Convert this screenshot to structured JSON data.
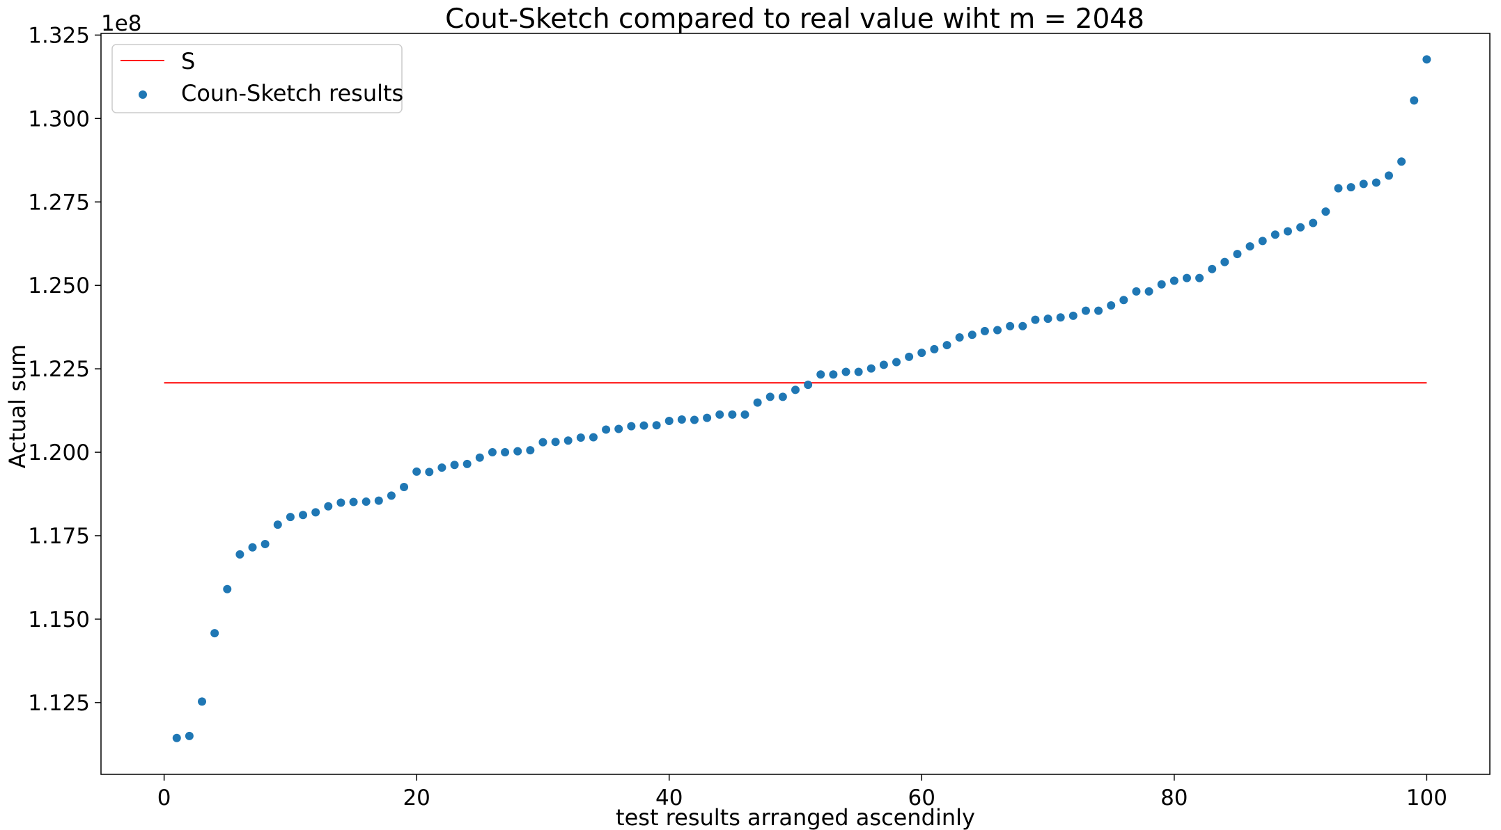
{
  "chart_data": {
    "type": "scatter",
    "title": "Cout-Sketch compared to real value wiht m = 2048",
    "xlabel": "test results arranged ascendinly",
    "ylabel": "Actual sum",
    "y_offset_label": "1e8",
    "xlim": [
      -5,
      105
    ],
    "ylim": [
      1.1035,
      1.3255
    ],
    "x_ticks": [
      0,
      20,
      40,
      60,
      80,
      100
    ],
    "x_tick_labels": [
      "0",
      "20",
      "40",
      "60",
      "80",
      "100"
    ],
    "y_ticks": [
      1.125,
      1.15,
      1.175,
      1.2,
      1.225,
      1.25,
      1.275,
      1.3,
      1.325
    ],
    "y_tick_labels": [
      "1.125",
      "1.150",
      "1.175",
      "1.200",
      "1.225",
      "1.250",
      "1.275",
      "1.300",
      "1.325"
    ],
    "grid": false,
    "legend_position": "top-left",
    "line_series": {
      "name": "S",
      "color": "#ff0000",
      "x": [
        0,
        100
      ],
      "y": [
        1.2208,
        1.2208
      ]
    },
    "scatter_series": {
      "name": "Coun-Sketch results",
      "color": "#1f77b4",
      "x": [
        1,
        2,
        3,
        4,
        5,
        6,
        7,
        8,
        9,
        10,
        11,
        12,
        13,
        14,
        15,
        16,
        17,
        18,
        19,
        20,
        21,
        22,
        23,
        24,
        25,
        26,
        27,
        28,
        29,
        30,
        31,
        32,
        33,
        34,
        35,
        36,
        37,
        38,
        39,
        40,
        41,
        42,
        43,
        44,
        45,
        46,
        47,
        48,
        49,
        50,
        51,
        52,
        53,
        54,
        55,
        56,
        57,
        58,
        59,
        60,
        61,
        62,
        63,
        64,
        65,
        66,
        67,
        68,
        69,
        70,
        71,
        72,
        73,
        74,
        75,
        76,
        77,
        78,
        79,
        80,
        81,
        82,
        83,
        84,
        85,
        86,
        87,
        88,
        89,
        90,
        91,
        92,
        93,
        94,
        95,
        96,
        97,
        98,
        99,
        100
      ],
      "y": [
        1.1144,
        1.115,
        1.1253,
        1.1458,
        1.159,
        1.1694,
        1.1715,
        1.1725,
        1.1783,
        1.1806,
        1.1812,
        1.182,
        1.1838,
        1.1849,
        1.1851,
        1.1852,
        1.1855,
        1.187,
        1.1896,
        1.1942,
        1.1941,
        1.1954,
        1.1962,
        1.1965,
        1.1984,
        1.2,
        1.2,
        1.2003,
        1.2006,
        1.203,
        1.2031,
        1.2035,
        1.2044,
        1.2045,
        1.2068,
        1.207,
        1.2078,
        1.208,
        1.2081,
        1.2094,
        1.2098,
        1.2097,
        1.2103,
        1.2113,
        1.2113,
        1.2113,
        1.2149,
        1.2166,
        1.2166,
        1.2187,
        1.2202,
        1.2233,
        1.2233,
        1.2241,
        1.2241,
        1.2251,
        1.2262,
        1.227,
        1.2286,
        1.2298,
        1.2309,
        1.2321,
        1.2344,
        1.2352,
        1.2363,
        1.2366,
        1.2378,
        1.2378,
        1.2397,
        1.24,
        1.2404,
        1.2409,
        1.2424,
        1.2424,
        1.244,
        1.2456,
        1.2482,
        1.2482,
        1.2503,
        1.2514,
        1.2522,
        1.2522,
        1.2549,
        1.257,
        1.2594,
        1.2617,
        1.2633,
        1.2652,
        1.2662,
        1.2674,
        1.2687,
        1.2721,
        1.2791,
        1.2794,
        1.2804,
        1.2808,
        1.2829,
        1.2871,
        1.3054,
        1.3177
      ]
    }
  }
}
